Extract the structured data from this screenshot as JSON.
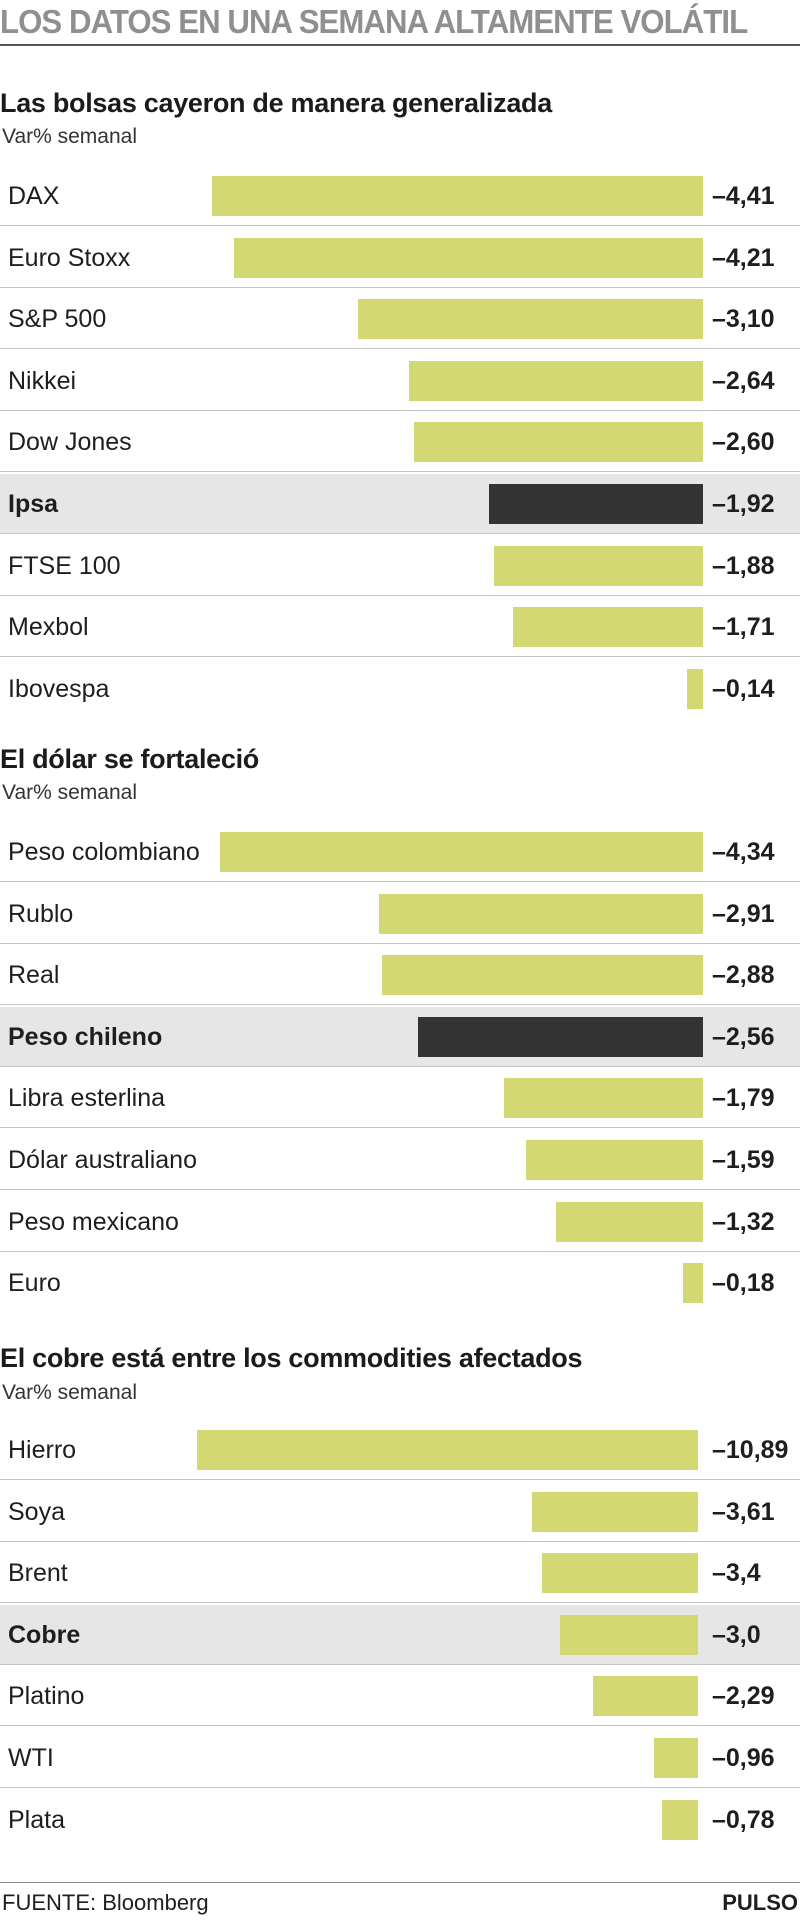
{
  "headline": "LOS DATOS EN UNA SEMANA ALTAMENTE VOLÁTIL",
  "source": "FUENTE: Bloomberg",
  "brand": "PULSO",
  "colors": {
    "bar": "#d3d872",
    "highlight_bar": "#333333",
    "highlight_row": "#e6e6e6"
  },
  "chart_data": [
    {
      "type": "bar",
      "title": "Las bolsas cayeron de manera generalizada",
      "subtitle": "Var% semanal",
      "categories": [
        "DAX",
        "Euro Stoxx",
        "S&P 500",
        "Nikkei",
        "Dow Jones",
        "Ipsa",
        "FTSE 100",
        "Mexbol",
        "Ibovespa"
      ],
      "values": [
        -4.41,
        -4.21,
        -3.1,
        -2.64,
        -2.6,
        -1.92,
        -1.88,
        -1.71,
        -0.14
      ],
      "value_labels": [
        "–4,41",
        "–4,21",
        "–3,10",
        "–2,64",
        "–2,60",
        "–1,92",
        "–1,88",
        "–1,71",
        "–0,14"
      ],
      "highlight": "Ipsa"
    },
    {
      "type": "bar",
      "title": "El dólar se fortaleció",
      "subtitle": "Var% semanal",
      "categories": [
        "Peso colombiano",
        "Rublo",
        "Real",
        "Peso chileno",
        "Libra esterlina",
        "Dólar australiano",
        "Peso mexicano",
        "Euro"
      ],
      "values": [
        -4.34,
        -2.91,
        -2.88,
        -2.56,
        -1.79,
        -1.59,
        -1.32,
        -0.18
      ],
      "value_labels": [
        "–4,34",
        "–2,91",
        "–2,88",
        "–2,56",
        "–1,79",
        "–1,59",
        "–1,32",
        "–0,18"
      ],
      "highlight": "Peso chileno"
    },
    {
      "type": "bar",
      "title": "El cobre está entre los commodities afectados",
      "subtitle": "Var% semanal",
      "categories": [
        "Hierro",
        "Soya",
        "Brent",
        "Cobre",
        "Platino",
        "WTI",
        "Plata"
      ],
      "values": [
        -10.89,
        -3.61,
        -3.4,
        -3.0,
        -2.29,
        -0.96,
        -0.78
      ],
      "value_labels": [
        "–10,89",
        "–3,61",
        "–3,4",
        "–3,0",
        "–2,29",
        "–0,96",
        "–0,78"
      ],
      "highlight": "Cobre"
    }
  ]
}
